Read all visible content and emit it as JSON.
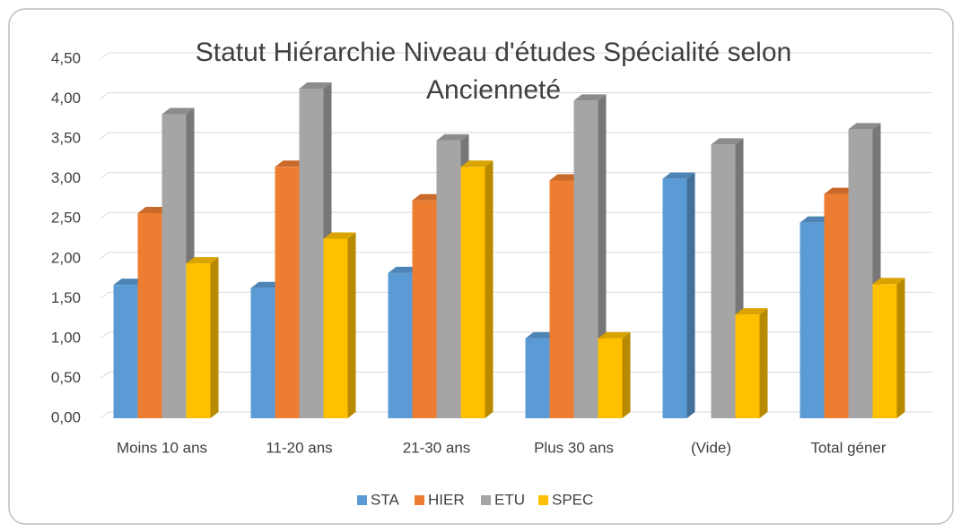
{
  "chart_data": {
    "type": "bar3d",
    "title": "Statut Hiérarchie Niveau d'études Spécialité selon Ancienneté",
    "categories": [
      "Moins 10 ans",
      "11-20 ans",
      "21-30 ans",
      "Plus 30 ans",
      "(Vide)",
      "Total géner"
    ],
    "series": [
      {
        "name": "STA",
        "color": "#5b9bd5",
        "values": [
          1.67,
          1.63,
          1.82,
          1.0,
          3.0,
          2.45
        ]
      },
      {
        "name": "HIER",
        "color": "#ed7d31",
        "values": [
          2.57,
          3.15,
          2.73,
          2.98,
          null,
          2.81
        ]
      },
      {
        "name": "ETU",
        "color": "#a5a5a5",
        "values": [
          3.81,
          4.13,
          3.48,
          3.98,
          3.43,
          3.62
        ]
      },
      {
        "name": "SPEC",
        "color": "#ffc000",
        "values": [
          1.94,
          2.25,
          3.15,
          1.0,
          1.3,
          1.68
        ]
      }
    ],
    "ylim": [
      0,
      4.5
    ],
    "yticks": [
      {
        "value": 0,
        "label": "0,00"
      },
      {
        "value": 0.5,
        "label": "0,50"
      },
      {
        "value": 1,
        "label": "1,00"
      },
      {
        "value": 1.5,
        "label": "1,50"
      },
      {
        "value": 2,
        "label": "2,00"
      },
      {
        "value": 2.5,
        "label": "2,50"
      },
      {
        "value": 3,
        "label": "3,00"
      },
      {
        "value": 3.5,
        "label": "3,50"
      },
      {
        "value": 4,
        "label": "4,00"
      },
      {
        "value": 4.5,
        "label": "4,50"
      }
    ],
    "grid": true,
    "legend": "bottom"
  }
}
